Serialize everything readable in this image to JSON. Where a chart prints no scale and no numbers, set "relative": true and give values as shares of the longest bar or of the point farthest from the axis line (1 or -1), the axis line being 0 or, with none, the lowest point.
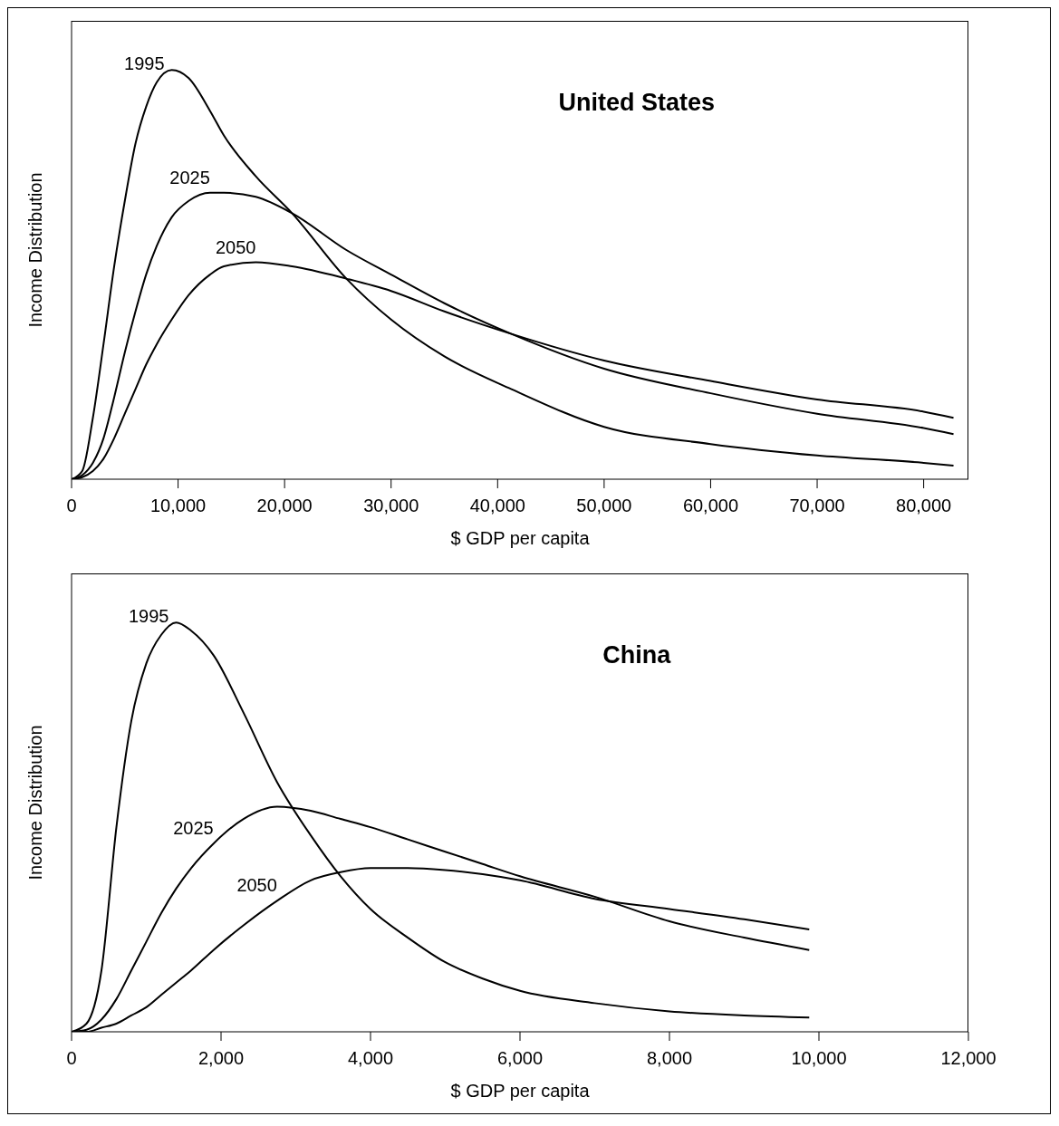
{
  "chart_data": [
    {
      "type": "line",
      "title": "United States",
      "xlabel": "$ GDP per capita",
      "ylabel": "Income Distribution",
      "relative": true,
      "legend": false,
      "grid": false,
      "marker": "none",
      "line_style": "solid",
      "x": [
        0,
        1000,
        2000,
        3000,
        4000,
        5000,
        6000,
        7000,
        8000,
        9400,
        11000,
        13000,
        14300,
        17300,
        20700,
        25800,
        30000,
        35000,
        41300,
        50000,
        60000,
        70000,
        80000,
        82800
      ],
      "xlim": [
        0,
        84200
      ],
      "xticks": [
        0,
        {
          "value": 10000,
          "label": "10,000"
        },
        {
          "value": 20000,
          "label": "20,000"
        },
        {
          "value": 30000,
          "label": "30,000"
        },
        {
          "value": 40000,
          "label": "40,000"
        },
        {
          "value": 50000,
          "label": "50,000"
        },
        {
          "value": 60000,
          "label": "60,000"
        },
        {
          "value": 70000,
          "label": "70,000"
        },
        {
          "value": 80000,
          "label": "80,000"
        }
      ],
      "series": [
        {
          "name": "1995",
          "color": "#000000",
          "values": [
            0,
            0.02,
            0.15,
            0.33,
            0.52,
            0.68,
            0.82,
            0.91,
            0.97,
            1,
            0.98,
            0.9,
            0.84,
            0.74,
            0.65,
            0.49,
            0.39,
            0.3,
            0.22,
            0.128,
            0.086,
            0.058,
            0.04,
            0.033
          ]
        },
        {
          "name": "2025",
          "color": "#000000",
          "values": [
            0,
            0.01,
            0.04,
            0.1,
            0.2,
            0.31,
            0.41,
            0.5,
            0.57,
            0.64,
            0.68,
            0.7,
            0.7,
            0.69,
            0.65,
            0.56,
            0.5,
            0.43,
            0.355,
            0.27,
            0.21,
            0.16,
            0.125,
            0.11
          ]
        },
        {
          "name": "2050",
          "color": "#000000",
          "values": [
            0,
            0.005,
            0.02,
            0.05,
            0.1,
            0.16,
            0.22,
            0.28,
            0.33,
            0.39,
            0.45,
            0.5,
            0.52,
            0.53,
            0.52,
            0.49,
            0.46,
            0.41,
            0.355,
            0.29,
            0.24,
            0.195,
            0.165,
            0.15
          ]
        }
      ]
    },
    {
      "type": "line",
      "title": "China",
      "xlabel": "$ GDP per capita",
      "ylabel": "Income Distribution",
      "relative": true,
      "legend": false,
      "grid": false,
      "marker": "none",
      "line_style": "solid",
      "x": [
        0,
        200,
        400,
        600,
        800,
        1000,
        1200,
        1400,
        1600,
        1900,
        2300,
        2750,
        3200,
        3600,
        4000,
        4500,
        5000,
        5500,
        6000,
        7000,
        8000,
        9000,
        9870
      ],
      "xlim": [
        0,
        12000
      ],
      "xticks": [
        0,
        {
          "value": 2000,
          "label": "2,000"
        },
        {
          "value": 4000,
          "label": "4,000"
        },
        {
          "value": 6000,
          "label": "6,000"
        },
        {
          "value": 8000,
          "label": "8,000"
        },
        {
          "value": 10000,
          "label": "10,000"
        },
        {
          "value": 12000,
          "label": "12,000"
        }
      ],
      "series": [
        {
          "name": "1995",
          "color": "#000000",
          "values": [
            0,
            0.02,
            0.15,
            0.5,
            0.76,
            0.9,
            0.97,
            1,
            0.98,
            0.92,
            0.78,
            0.61,
            0.48,
            0.38,
            0.3,
            0.23,
            0.17,
            0.13,
            0.1,
            0.07,
            0.05,
            0.04,
            0.035
          ]
        },
        {
          "name": "2025",
          "color": "#000000",
          "values": [
            0,
            0.005,
            0.03,
            0.08,
            0.15,
            0.22,
            0.29,
            0.35,
            0.4,
            0.46,
            0.52,
            0.55,
            0.54,
            0.52,
            0.5,
            0.47,
            0.44,
            0.41,
            0.38,
            0.33,
            0.27,
            0.23,
            0.2
          ]
        },
        {
          "name": "2050",
          "color": "#000000",
          "values": [
            0,
            0,
            0.01,
            0.02,
            0.04,
            0.06,
            0.09,
            0.12,
            0.15,
            0.2,
            0.26,
            0.32,
            0.37,
            0.39,
            0.4,
            0.4,
            0.395,
            0.385,
            0.37,
            0.325,
            0.3,
            0.275,
            0.25
          ]
        }
      ]
    }
  ]
}
